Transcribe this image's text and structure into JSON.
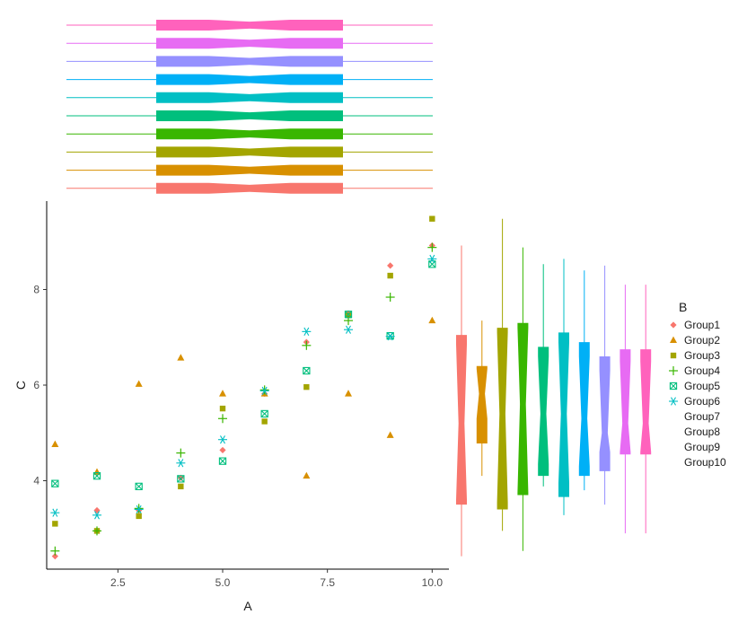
{
  "chart_data": {
    "type": "scatter",
    "xlabel": "A",
    "ylabel": "C",
    "xlim": [
      0.8,
      10.4
    ],
    "ylim": [
      2.15,
      9.85
    ],
    "x_ticks": [
      2.5,
      5.0,
      7.5,
      10.0
    ],
    "x_tick_labels": [
      "2.5",
      "5.0",
      "7.5",
      "10.0"
    ],
    "y_ticks": [
      4,
      6,
      8
    ],
    "y_tick_labels": [
      "4",
      "6",
      "8"
    ],
    "grid": false,
    "legend": {
      "title": "B",
      "placement": "right",
      "entries": [
        "Group1",
        "Group2",
        "Group3",
        "Group4",
        "Group5",
        "Group6",
        "Group7",
        "Group8",
        "Group9",
        "Group10"
      ]
    },
    "colors": [
      "#F8766D",
      "#D89000",
      "#A3A500",
      "#39B600",
      "#00BF7D",
      "#00BFC4",
      "#00B0F6",
      "#9590FF",
      "#E76BF3",
      "#FF62BC"
    ],
    "series": [
      {
        "name": "Group1",
        "marker": "diamond",
        "points": [
          [
            1,
            2.42
          ],
          [
            2,
            3.38
          ],
          [
            3,
            3.38
          ],
          [
            4,
            4.06
          ],
          [
            5,
            4.64
          ],
          [
            6,
            5.82
          ],
          [
            7,
            6.9
          ],
          [
            8,
            7.5
          ],
          [
            9,
            8.5
          ],
          [
            10,
            8.92
          ]
        ]
      },
      {
        "name": "Group2",
        "marker": "triangle",
        "points": [
          [
            1,
            4.76
          ],
          [
            2,
            4.18
          ],
          [
            3,
            6.02
          ],
          [
            4,
            6.57
          ],
          [
            5,
            5.82
          ],
          [
            6,
            5.82
          ],
          [
            7,
            4.1
          ],
          [
            8,
            5.82
          ],
          [
            9,
            4.95
          ],
          [
            10,
            7.35
          ]
        ]
      },
      {
        "name": "Group3",
        "marker": "square",
        "points": [
          [
            1,
            3.1
          ],
          [
            2,
            2.95
          ],
          [
            3,
            3.26
          ],
          [
            4,
            3.88
          ],
          [
            5,
            5.51
          ],
          [
            6,
            5.24
          ],
          [
            7,
            5.96
          ],
          [
            8,
            7.46
          ],
          [
            9,
            8.29
          ],
          [
            10,
            9.48
          ]
        ]
      },
      {
        "name": "Group4",
        "marker": "plus",
        "points": [
          [
            1,
            2.53
          ],
          [
            2,
            2.95
          ],
          [
            3,
            3.42
          ],
          [
            4,
            4.58
          ],
          [
            5,
            5.3
          ],
          [
            6,
            5.9
          ],
          [
            7,
            6.83
          ],
          [
            8,
            7.35
          ],
          [
            9,
            7.84
          ],
          [
            10,
            8.88
          ]
        ]
      },
      {
        "name": "Group5",
        "marker": "square-x",
        "points": [
          [
            1,
            3.94
          ],
          [
            2,
            4.1
          ],
          [
            3,
            3.88
          ],
          [
            4,
            4.04
          ],
          [
            5,
            4.41
          ],
          [
            6,
            5.4
          ],
          [
            7,
            6.3
          ],
          [
            8,
            7.48
          ],
          [
            9,
            7.03
          ],
          [
            10,
            8.53
          ]
        ]
      },
      {
        "name": "Group6",
        "marker": "asterisk",
        "points": [
          [
            1,
            3.33
          ],
          [
            2,
            3.28
          ],
          [
            3,
            3.4
          ],
          [
            4,
            4.37
          ],
          [
            5,
            4.86
          ],
          [
            6,
            5.88
          ],
          [
            7,
            7.12
          ],
          [
            8,
            7.16
          ],
          [
            9,
            7.02
          ],
          [
            10,
            8.64
          ]
        ]
      }
    ],
    "top_boxes": {
      "orientation": "horizontal",
      "axis": "A",
      "groups": [
        {
          "name": "Group1",
          "min": 1,
          "q1": 3.25,
          "median": 5.5,
          "q3": 7.75,
          "max": 10,
          "notch": [
            4.5,
            6.5
          ]
        },
        {
          "name": "Group2",
          "min": 1,
          "q1": 3.25,
          "median": 5.5,
          "q3": 7.75,
          "max": 10,
          "notch": [
            4.5,
            6.5
          ]
        },
        {
          "name": "Group3",
          "min": 1,
          "q1": 3.25,
          "median": 5.5,
          "q3": 7.75,
          "max": 10,
          "notch": [
            4.5,
            6.5
          ]
        },
        {
          "name": "Group4",
          "min": 1,
          "q1": 3.25,
          "median": 5.5,
          "q3": 7.75,
          "max": 10,
          "notch": [
            4.5,
            6.5
          ]
        },
        {
          "name": "Group5",
          "min": 1,
          "q1": 3.25,
          "median": 5.5,
          "q3": 7.75,
          "max": 10,
          "notch": [
            4.5,
            6.5
          ]
        },
        {
          "name": "Group6",
          "min": 1,
          "q1": 3.25,
          "median": 5.5,
          "q3": 7.75,
          "max": 10,
          "notch": [
            4.5,
            6.5
          ]
        },
        {
          "name": "Group7",
          "min": 1,
          "q1": 3.25,
          "median": 5.5,
          "q3": 7.75,
          "max": 10,
          "notch": [
            4.5,
            6.5
          ]
        },
        {
          "name": "Group8",
          "min": 1,
          "q1": 3.25,
          "median": 5.5,
          "q3": 7.75,
          "max": 10,
          "notch": [
            4.5,
            6.5
          ]
        },
        {
          "name": "Group9",
          "min": 1,
          "q1": 3.25,
          "median": 5.5,
          "q3": 7.75,
          "max": 10,
          "notch": [
            4.5,
            6.5
          ]
        },
        {
          "name": "Group10",
          "min": 1,
          "q1": 3.25,
          "median": 5.5,
          "q3": 7.75,
          "max": 10,
          "notch": [
            4.5,
            6.5
          ]
        }
      ]
    },
    "right_boxes": {
      "orientation": "vertical",
      "axis": "C",
      "groups": [
        {
          "name": "Group1",
          "min": 2.42,
          "q1": 3.5,
          "median": 5.2,
          "q3": 7.05,
          "max": 8.92,
          "notch": [
            3.6,
            6.85
          ]
        },
        {
          "name": "Group2",
          "min": 4.1,
          "q1": 4.78,
          "median": 5.82,
          "q3": 6.4,
          "max": 7.35,
          "notch": [
            5.3,
            6.34
          ]
        },
        {
          "name": "Group3",
          "min": 2.95,
          "q1": 3.4,
          "median": 5.4,
          "q3": 7.2,
          "max": 9.48,
          "notch": [
            3.55,
            7.1
          ]
        },
        {
          "name": "Group4",
          "min": 2.53,
          "q1": 3.7,
          "median": 5.6,
          "q3": 7.3,
          "max": 8.88,
          "notch": [
            3.75,
            7.2
          ]
        },
        {
          "name": "Group5",
          "min": 3.88,
          "q1": 4.1,
          "median": 5.4,
          "q3": 6.8,
          "max": 8.53,
          "notch": [
            4.35,
            6.6
          ]
        },
        {
          "name": "Group6",
          "min": 3.28,
          "q1": 3.66,
          "median": 5.4,
          "q3": 7.1,
          "max": 8.64,
          "notch": [
            3.95,
            6.9
          ]
        },
        {
          "name": "Group7",
          "min": 3.8,
          "q1": 4.1,
          "median": 5.3,
          "q3": 6.9,
          "max": 8.4,
          "notch": [
            4.3,
            6.6
          ]
        },
        {
          "name": "Group8",
          "min": 3.5,
          "q1": 4.2,
          "median": 5.0,
          "q3": 6.6,
          "max": 8.5,
          "notch": [
            4.6,
            6.3
          ]
        },
        {
          "name": "Group9",
          "min": 2.9,
          "q1": 4.55,
          "median": 5.2,
          "q3": 6.75,
          "max": 8.1,
          "notch": [
            4.6,
            6.5
          ]
        },
        {
          "name": "Group10",
          "min": 2.9,
          "q1": 4.55,
          "median": 5.2,
          "q3": 6.75,
          "max": 8.1,
          "notch": [
            4.6,
            6.5
          ]
        }
      ]
    }
  }
}
